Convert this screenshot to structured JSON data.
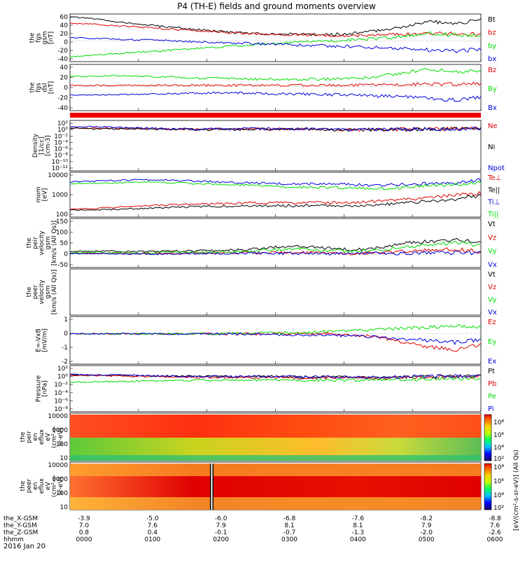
{
  "title": "P4 (TH-E) fields and ground moments overview",
  "date_label": "2016 Jan 20",
  "colors": {
    "black": "#000000",
    "red": "#dd0000",
    "green": "#00dd00",
    "blue": "#0000dd"
  },
  "orbit": {
    "row_labels": [
      "the_X-GSM",
      "the_Y-GSM",
      "the_Z-GSM",
      "hhmm"
    ],
    "x_gsm": [
      "-3.9",
      "-5.0",
      "-6.0",
      "-6.8",
      "-7.6",
      "-8.2",
      "-8.8"
    ],
    "y_gsm": [
      "7.0",
      "7.6",
      "7.9",
      "8.1",
      "8.1",
      "7.9",
      "7.6"
    ],
    "z_gsm": [
      "0.8",
      "0.4",
      "-0.1",
      "-0.7",
      "-1.3",
      "-2.0",
      "-2.6"
    ],
    "hhmm": [
      "0000",
      "0100",
      "0200",
      "0300",
      "0400",
      "0500",
      "0600"
    ]
  },
  "colorbars": {
    "eflux_top_ticks": [
      "10⁸",
      "10⁶",
      "10⁴",
      "10²"
    ],
    "eflux_bottom_ticks": [
      "10⁸",
      "10⁶",
      "10⁴",
      "10²"
    ],
    "unit_label": "[eV/(cm²-s-sr-eV)] (All Qs)"
  },
  "chart_data": [
    {
      "type": "line",
      "ylabel": [
        "the",
        "fgs",
        "gsm",
        "[nT]"
      ],
      "yticks": [
        "60",
        "40",
        "20",
        "0",
        "-20",
        "-40"
      ],
      "ylim": [
        -50,
        65
      ],
      "series": [
        {
          "name": "Bt",
          "color": "#000000",
          "values": [
            58,
            53,
            45,
            38,
            33,
            27,
            22,
            18,
            17,
            16,
            15,
            18,
            25,
            35,
            48,
            40,
            52
          ]
        },
        {
          "name": "bz",
          "color": "#dd0000",
          "values": [
            43,
            40,
            36,
            32,
            28,
            24,
            21,
            18,
            16,
            15,
            14,
            13,
            14,
            16,
            18,
            17,
            15
          ]
        },
        {
          "name": "by",
          "color": "#00dd00",
          "values": [
            -38,
            -34,
            -30,
            -26,
            -22,
            -18,
            -14,
            -10,
            -6,
            -3,
            0,
            3,
            6,
            10,
            18,
            15,
            12
          ]
        },
        {
          "name": "bx",
          "color": "#0000dd",
          "values": [
            8,
            6,
            4,
            2,
            0,
            -2,
            -4,
            -6,
            -8,
            -10,
            -12,
            -14,
            -16,
            -18,
            -22,
            -25,
            -20
          ]
        }
      ]
    },
    {
      "type": "line",
      "ylabel": [
        "the",
        "fgs",
        "dsl",
        "[nT]"
      ],
      "yticks": [
        "40",
        "20",
        "0",
        "-20",
        "-40"
      ],
      "ylim": [
        -50,
        45
      ],
      "series": [
        {
          "name": "Bz",
          "color": "#dd0000",
          "values": [
            2,
            2,
            2,
            2,
            2,
            2,
            2,
            2,
            2,
            2,
            2,
            2,
            3,
            4,
            5,
            4,
            5
          ]
        },
        {
          "name": "By",
          "color": "#00dd00",
          "values": [
            20,
            21,
            22,
            20,
            19,
            17,
            16,
            15,
            15,
            14,
            15,
            16,
            20,
            28,
            35,
            30,
            32
          ]
        },
        {
          "name": "Bx",
          "color": "#0000dd",
          "values": [
            -18,
            -18,
            -17,
            -16,
            -15,
            -14,
            -13,
            -14,
            -15,
            -16,
            -17,
            -18,
            -20,
            -22,
            -25,
            -28,
            -22
          ]
        }
      ]
    },
    {
      "type": "line",
      "ylabel": [
        "Density",
        "[1/cc]",
        "[cm-3]"
      ],
      "yticks": [
        "10²",
        "10⁰",
        "10⁻²",
        "10⁻⁴",
        "10⁻⁶",
        "10⁻⁸",
        "10⁻¹⁰",
        "10⁻¹²"
      ],
      "ylim": [
        -13,
        3
      ],
      "log": true,
      "series": [
        {
          "name": "Ne",
          "color": "#dd0000",
          "values": [
            0.5,
            0.5,
            0.5,
            0.4,
            0.2,
            0.2,
            0.3,
            0.3,
            0.3,
            0.3,
            0.2,
            0.1,
            0.1,
            0.2,
            0.3,
            0.3,
            0.3
          ]
        },
        {
          "name": "Ni",
          "color": "#000000",
          "values": [
            0.5,
            0.4,
            0.3,
            0.3,
            0.2,
            0.1,
            0.1,
            0.2,
            0.2,
            0.2,
            0.1,
            0.0,
            0.0,
            0.1,
            0.2,
            0.2,
            0.2
          ]
        },
        {
          "name": "Npot",
          "color": "#0000dd",
          "values": [
            1.0,
            1.0,
            0.8,
            0.6,
            0.3,
            0.2,
            0.3,
            0.4,
            0.4,
            0.3,
            0.2,
            0.1,
            0.1,
            0.2,
            0.3,
            0.3,
            0.3
          ]
        }
      ]
    },
    {
      "type": "line",
      "ylabel": [
        "mom",
        "[eV]"
      ],
      "yticks": [
        "10000",
        "1000",
        "100"
      ],
      "ylim": [
        1.5,
        4.05
      ],
      "log": true,
      "series": [
        {
          "name": "Te⊥",
          "color": "#dd0000",
          "values": [
            1.95,
            2.0,
            2.08,
            2.15,
            2.2,
            2.25,
            2.27,
            2.3,
            2.3,
            2.32,
            2.33,
            2.33,
            2.4,
            2.5,
            2.6,
            2.75,
            2.85
          ]
        },
        {
          "name": "Te||",
          "color": "#000000",
          "values": [
            1.9,
            1.9,
            1.95,
            2.0,
            2.05,
            2.1,
            2.12,
            2.12,
            2.15,
            2.15,
            2.15,
            2.15,
            2.2,
            2.3,
            2.4,
            2.5,
            2.75
          ]
        },
        {
          "name": "Ti⊥",
          "color": "#0000dd",
          "values": [
            3.5,
            3.55,
            3.6,
            3.62,
            3.6,
            3.55,
            3.5,
            3.45,
            3.42,
            3.4,
            3.38,
            3.35,
            3.3,
            3.35,
            3.4,
            3.45,
            3.6
          ]
        },
        {
          "name": "Ti||",
          "color": "#00dd00",
          "values": [
            3.4,
            3.42,
            3.45,
            3.5,
            3.45,
            3.4,
            3.35,
            3.3,
            3.25,
            3.2,
            3.18,
            3.15,
            3.1,
            3.2,
            3.3,
            3.35,
            3.45
          ]
        }
      ]
    },
    {
      "type": "line",
      "ylabel": [
        "the",
        "peir",
        "velocity",
        "gsm",
        "[km/s (All Qs)]"
      ],
      "yticks": [
        "150",
        "100",
        "50",
        "0",
        "-50"
      ],
      "ylim": [
        -60,
        155
      ],
      "series": [
        {
          "name": "Vt",
          "color": "#000000",
          "values": [
            10,
            12,
            11,
            10,
            12,
            13,
            15,
            20,
            30,
            35,
            25,
            20,
            25,
            45,
            55,
            60,
            50
          ]
        },
        {
          "name": "Vz",
          "color": "#dd0000",
          "values": [
            2,
            3,
            2,
            1,
            2,
            3,
            4,
            5,
            6,
            5,
            3,
            2,
            5,
            10,
            15,
            20,
            10
          ]
        },
        {
          "name": "Vy",
          "color": "#00dd00",
          "values": [
            5,
            6,
            5,
            4,
            6,
            7,
            9,
            12,
            18,
            22,
            14,
            12,
            15,
            30,
            40,
            50,
            35
          ]
        },
        {
          "name": "Vx",
          "color": "#0000dd",
          "values": [
            0,
            1,
            0,
            -1,
            0,
            1,
            2,
            3,
            2,
            1,
            0,
            -1,
            2,
            3,
            5,
            4,
            3
          ]
        }
      ]
    },
    {
      "type": "line",
      "ylabel": [
        "the",
        "peer",
        "velocity",
        "gsm",
        "[km/s (All Qs)]"
      ],
      "yticks": [],
      "ylim": [
        0,
        1
      ],
      "series": [
        {
          "name": "Vt",
          "color": "#000000",
          "values": []
        },
        {
          "name": "Vz",
          "color": "#dd0000",
          "values": []
        },
        {
          "name": "Vy",
          "color": "#00dd00",
          "values": []
        },
        {
          "name": "Vx",
          "color": "#0000dd",
          "values": []
        }
      ]
    },
    {
      "type": "line",
      "ylabel": [
        "E=-VxB",
        "[mV/m]"
      ],
      "yticks": [
        "1",
        "0",
        "-1",
        "-2"
      ],
      "ylim": [
        -2.8,
        1.6
      ],
      "series": [
        {
          "name": "Ez",
          "color": "#dd0000",
          "values": [
            0,
            0,
            0,
            0,
            0,
            0,
            0,
            0,
            0,
            0,
            0,
            -0.1,
            -0.3,
            -0.8,
            -1.2,
            -1.5,
            -1.0
          ]
        },
        {
          "name": "Ey",
          "color": "#00dd00",
          "values": [
            0,
            0,
            0,
            0,
            0,
            0,
            0,
            0.05,
            0.1,
            0.1,
            0.2,
            0.3,
            0.4,
            0.5,
            0.6,
            0.8,
            0.6
          ]
        },
        {
          "name": "Ex",
          "color": "#0000dd",
          "values": [
            0,
            0,
            0,
            0,
            0,
            0,
            0,
            0,
            -0.1,
            -0.1,
            -0.1,
            -0.2,
            -0.3,
            -0.5,
            -0.6,
            -0.8,
            -0.5
          ]
        }
      ]
    },
    {
      "type": "line",
      "ylabel": [
        "Pressure",
        "[nPa]"
      ],
      "yticks": [
        "10²",
        "10⁰",
        "10⁻²",
        "10⁻⁴",
        "10⁻⁶",
        "10⁻⁸"
      ],
      "ylim": [
        -8.5,
        2.5
      ],
      "log": true,
      "series": [
        {
          "name": "Pt",
          "color": "#000000",
          "values": [
            0.3,
            0.2,
            0.1,
            0.0,
            0.0,
            -0.1,
            -0.1,
            -0.1,
            -0.1,
            -0.2,
            -0.2,
            -0.2,
            -0.3,
            -0.2,
            -0.1,
            0.0,
            0.1
          ]
        },
        {
          "name": "Pb",
          "color": "#dd0000",
          "values": [
            0.2,
            0.1,
            0.0,
            -0.1,
            -0.2,
            -0.3,
            -0.3,
            -0.3,
            -0.3,
            -0.4,
            -0.4,
            -0.4,
            -0.5,
            -0.4,
            -0.3,
            -0.2,
            -0.1
          ]
        },
        {
          "name": "Pe",
          "color": "#00dd00",
          "values": [
            -1.5,
            -1.4,
            -1.3,
            -1.2,
            -1.1,
            -1.0,
            -1.0,
            -1.0,
            -1.0,
            -1.0,
            -1.0,
            -1.0,
            -0.9,
            -0.8,
            -0.7,
            -0.6,
            -0.5
          ]
        },
        {
          "name": "Pi",
          "color": "#0000dd",
          "values": [
            0.4,
            0.3,
            0.2,
            0.1,
            0.0,
            -0.1,
            -0.1,
            -0.1,
            -0.1,
            -0.2,
            -0.2,
            -0.2,
            -0.3,
            -0.2,
            -0.1,
            0.0,
            0.1
          ]
        }
      ]
    },
    {
      "type": "heatmap",
      "ylabel": [
        "the",
        "peir",
        "en",
        "eflux",
        "eV",
        "(cm²-s-",
        "sr-eV)"
      ],
      "yticks": [
        "10000",
        "1000",
        "100",
        "10"
      ]
    },
    {
      "type": "heatmap",
      "ylabel": [
        "the",
        "peer",
        "en",
        "eflux",
        "eV",
        "(cm²-s-",
        "sr-eV)"
      ],
      "yticks": [
        "10000",
        "1000",
        "100",
        "10"
      ]
    }
  ]
}
